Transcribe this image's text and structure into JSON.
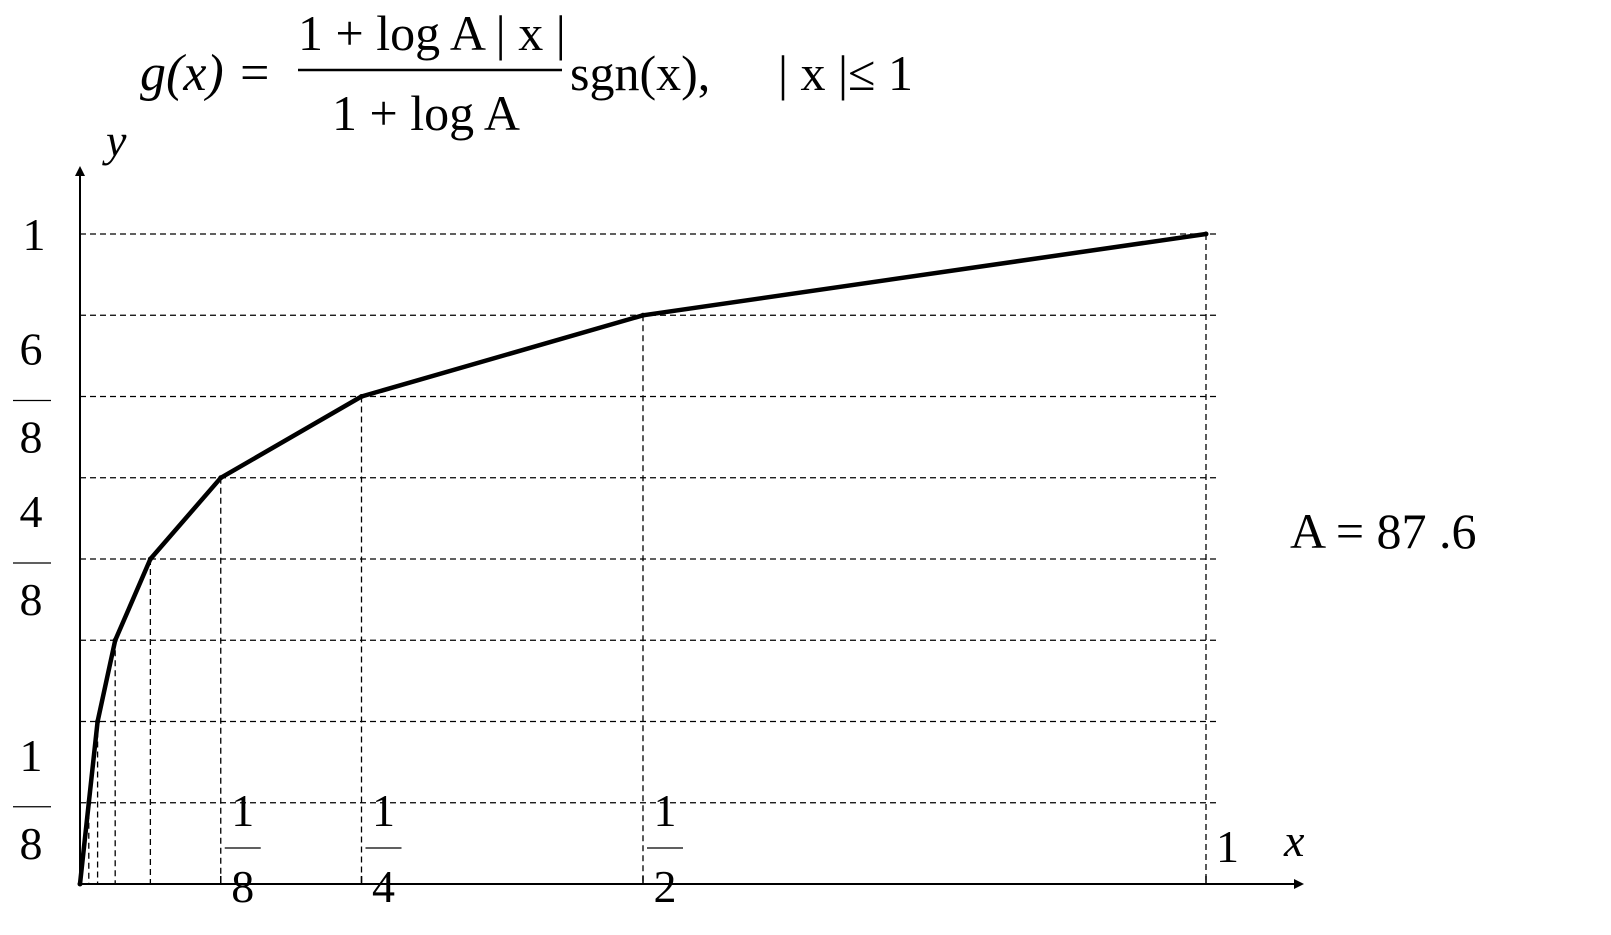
{
  "formula": {
    "lhs": "g(x) =",
    "numerator": "1 + log A | x |",
    "denominator": "1 + log A",
    "suffix": "sgn(x),",
    "condition": "| x |≤ 1"
  },
  "annotation": "A = 87 .6",
  "chart_data": {
    "type": "line",
    "title": "",
    "xlabel": "x",
    "ylabel": "y",
    "xlim": [
      0,
      1
    ],
    "ylim": [
      0,
      1
    ],
    "grid": "dashed",
    "x_breakpoints": [
      0,
      0.0078125,
      0.015625,
      0.03125,
      0.0625,
      0.125,
      0.25,
      0.5,
      1
    ],
    "y_gridlines": [
      0.125,
      0.25,
      0.375,
      0.5,
      0.625,
      0.75,
      0.875,
      1
    ],
    "series": [
      {
        "x": [
          0,
          0.0078125,
          0.015625,
          0.03125,
          0.0625,
          0.125,
          0.25,
          0.5,
          1
        ],
        "y": [
          0,
          0.125,
          0.25,
          0.375,
          0.5,
          0.625,
          0.75,
          0.875,
          1
        ]
      }
    ],
    "x_tick_labels": [
      {
        "value": 0.125,
        "num": "1",
        "den": "8"
      },
      {
        "value": 0.25,
        "num": "1",
        "den": "4"
      },
      {
        "value": 0.5,
        "num": "1",
        "den": "2"
      },
      {
        "value": 1,
        "text": "1"
      }
    ],
    "y_tick_labels": [
      {
        "value": 0.125,
        "num": "1",
        "den": "8"
      },
      {
        "value": 0.5,
        "num": "4",
        "den": "8"
      },
      {
        "value": 0.75,
        "num": "6",
        "den": "8"
      },
      {
        "value": 1,
        "text": "1"
      }
    ]
  }
}
